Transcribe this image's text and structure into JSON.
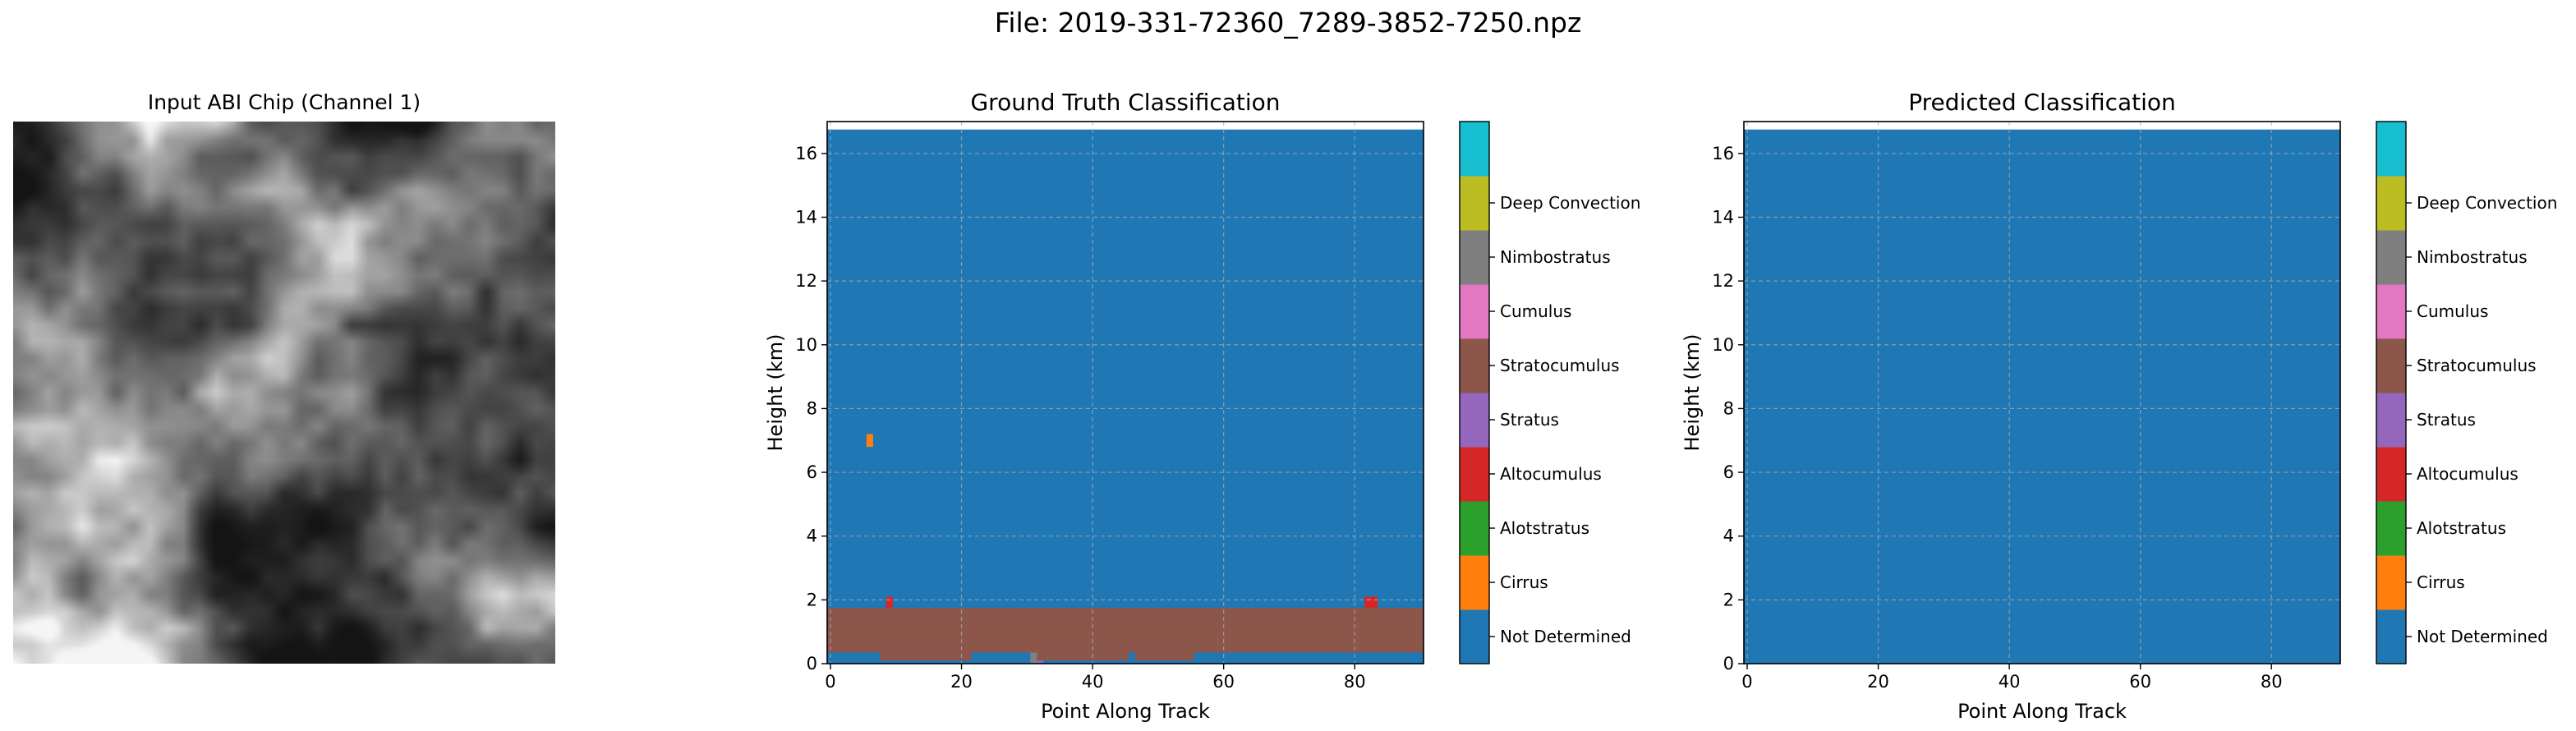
{
  "figure": {
    "suptitle": "File: 2019-331-72360_7289-3852-7250.npz",
    "abi_title": "Input ABI Chip (Channel 1)"
  },
  "classes": [
    {
      "name": "Not Determined",
      "color": "#1f77b4"
    },
    {
      "name": "Cirrus",
      "color": "#ff7f0e"
    },
    {
      "name": "Alotstratus",
      "color": "#2ca02c"
    },
    {
      "name": "Altocumulus",
      "color": "#d62728"
    },
    {
      "name": "Stratus",
      "color": "#9467bd"
    },
    {
      "name": "Stratocumulus",
      "color": "#8c564b"
    },
    {
      "name": "Cumulus",
      "color": "#e377c2"
    },
    {
      "name": "Nimbostratus",
      "color": "#7f7f7f"
    },
    {
      "name": "Deep Convection",
      "color": "#bcbd22"
    },
    {
      "name": "",
      "color": "#17becf"
    }
  ],
  "chart_data": [
    {
      "type": "heatmap",
      "title": "Ground Truth Classification",
      "xlabel": "Point Along Track",
      "ylabel": "Height (km)",
      "xlim": [
        -0.5,
        90.5
      ],
      "ylim": [
        0,
        17
      ],
      "data_top_km": 16.75,
      "xticks": [
        0,
        20,
        40,
        60,
        80
      ],
      "yticks": [
        0,
        2,
        4,
        6,
        8,
        10,
        12,
        14,
        16
      ],
      "grid": true,
      "background_class": "Not Determined",
      "cells": [
        {
          "x0": -0.5,
          "x1": 90.5,
          "y0": 0.35,
          "y1": 1.75,
          "class": "Stratocumulus"
        },
        {
          "x0": 7.5,
          "x1": 21.5,
          "y0": 0.1,
          "y1": 0.35,
          "class": "Stratocumulus"
        },
        {
          "x0": 31.5,
          "x1": 45.5,
          "y0": 0.1,
          "y1": 0.35,
          "class": "Stratocumulus"
        },
        {
          "x0": 46.5,
          "x1": 55.5,
          "y0": 0.1,
          "y1": 0.35,
          "class": "Stratocumulus"
        },
        {
          "x0": 30.5,
          "x1": 31.5,
          "y0": 0.0,
          "y1": 0.35,
          "class": "Nimbostratus"
        },
        {
          "x0": 31.5,
          "x1": 32.5,
          "y0": 0.0,
          "y1": 0.1,
          "class": "Stratus"
        },
        {
          "x0": 5.5,
          "x1": 6.5,
          "y0": 6.8,
          "y1": 7.2,
          "class": "Cirrus"
        },
        {
          "x0": 8.5,
          "x1": 9.5,
          "y0": 1.75,
          "y1": 2.1,
          "class": "Altocumulus"
        },
        {
          "x0": 81.5,
          "x1": 83.5,
          "y0": 1.75,
          "y1": 2.1,
          "class": "Altocumulus"
        }
      ],
      "colorbar": true
    },
    {
      "type": "heatmap",
      "title": "Predicted Classification",
      "xlabel": "Point Along Track",
      "ylabel": "Height (km)",
      "xlim": [
        -0.5,
        90.5
      ],
      "ylim": [
        0,
        17
      ],
      "data_top_km": 16.75,
      "xticks": [
        0,
        20,
        40,
        60,
        80
      ],
      "yticks": [
        0,
        2,
        4,
        6,
        8,
        10,
        12,
        14,
        16
      ],
      "grid": true,
      "background_class": "Not Determined",
      "cells": [],
      "colorbar": true
    }
  ]
}
